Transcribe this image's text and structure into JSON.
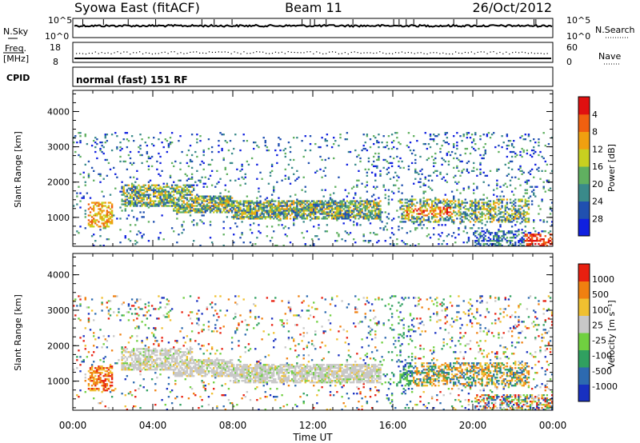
{
  "header": {
    "title": "Syowa East (fitACF)",
    "beam": "Beam 11",
    "date": "26/Oct/2012"
  },
  "strips": {
    "nsky": {
      "label": "N.Sky",
      "ticks": [
        "10^5",
        "10^0"
      ]
    },
    "nsearch": {
      "label": "N.Search",
      "ticks": [
        "10^5",
        "10^0"
      ]
    },
    "freq": {
      "label_top": "Freq.",
      "label_bottom": "[MHz]",
      "ticks": [
        "18",
        "8"
      ]
    },
    "nave": {
      "label": "Nave",
      "ticks": [
        "60",
        "0"
      ]
    },
    "cpid": {
      "label": "CPID",
      "text": "normal (fast) 151 RF"
    }
  },
  "chart_data": [
    {
      "type": "heatmap",
      "name": "power",
      "ylabel": "Slant Range [km]",
      "xlabel": "",
      "x_range_hours": [
        0,
        24
      ],
      "ylim": [
        180,
        4600
      ],
      "yticks": [
        "1000",
        "2000",
        "3000",
        "4000"
      ],
      "colorbar": {
        "label": "Power [dB]",
        "ticks": [
          "4",
          "8",
          "12",
          "16",
          "20",
          "24",
          "28"
        ],
        "colors": [
          "#1020e0",
          "#2050b0",
          "#3a8a8a",
          "#60b060",
          "#c8d020",
          "#f0a010",
          "#f06010",
          "#e01010"
        ],
        "range": [
          0,
          32
        ]
      }
    },
    {
      "type": "heatmap",
      "name": "velocity",
      "ylabel": "Slant Range [km]",
      "xlabel": "Time UT",
      "x_range_hours": [
        0,
        24
      ],
      "ylim": [
        180,
        4600
      ],
      "yticks": [
        "1000",
        "2000",
        "3000",
        "4000"
      ],
      "xticks": [
        "00:00",
        "04:00",
        "08:00",
        "12:00",
        "16:00",
        "20:00",
        "00:00"
      ],
      "colorbar": {
        "label": "Velocity [m s⁻¹]",
        "ticks": [
          "1000",
          "500",
          "100",
          "25",
          "-25",
          "-100",
          "-500",
          "-1000"
        ],
        "colors": [
          "#1830c0",
          "#2d6ab0",
          "#30a060",
          "#70d040",
          "#c8c8c8",
          "#f0c030",
          "#f08010",
          "#e82010"
        ]
      }
    }
  ]
}
